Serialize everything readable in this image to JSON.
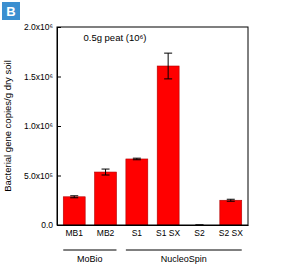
{
  "chart_data": {
    "type": "bar",
    "title": "0.5g peat (10⁶)",
    "y_label": "Bacterial gene copies/g dry soil",
    "annotations": [
      "B"
    ],
    "categories": [
      "MB1",
      "MB2",
      "S1",
      "S1 SX",
      "S2",
      "S2 SX"
    ],
    "values": [
      285000,
      535000,
      667000,
      1606000,
      0,
      250000
    ],
    "errors": [
      10000,
      30000,
      8000,
      130000,
      0,
      10000
    ],
    "groups": [
      {
        "label": "MoBio",
        "start": 0,
        "end": 1
      },
      {
        "label": "NucleoSpin",
        "start": 2,
        "end": 5
      }
    ],
    "color": "#ff0000",
    "ylim": [
      0,
      2000000
    ],
    "yticks": [
      {
        "value": 0,
        "label": "0.0"
      },
      {
        "value": 500000,
        "label": "5.0x10⁵"
      },
      {
        "value": 1000000,
        "label": "1.0x10⁶"
      },
      {
        "value": 1500000,
        "label": "1.5x10⁶"
      },
      {
        "value": 2000000,
        "label": "2.0x10⁶"
      }
    ],
    "grid": false
  }
}
